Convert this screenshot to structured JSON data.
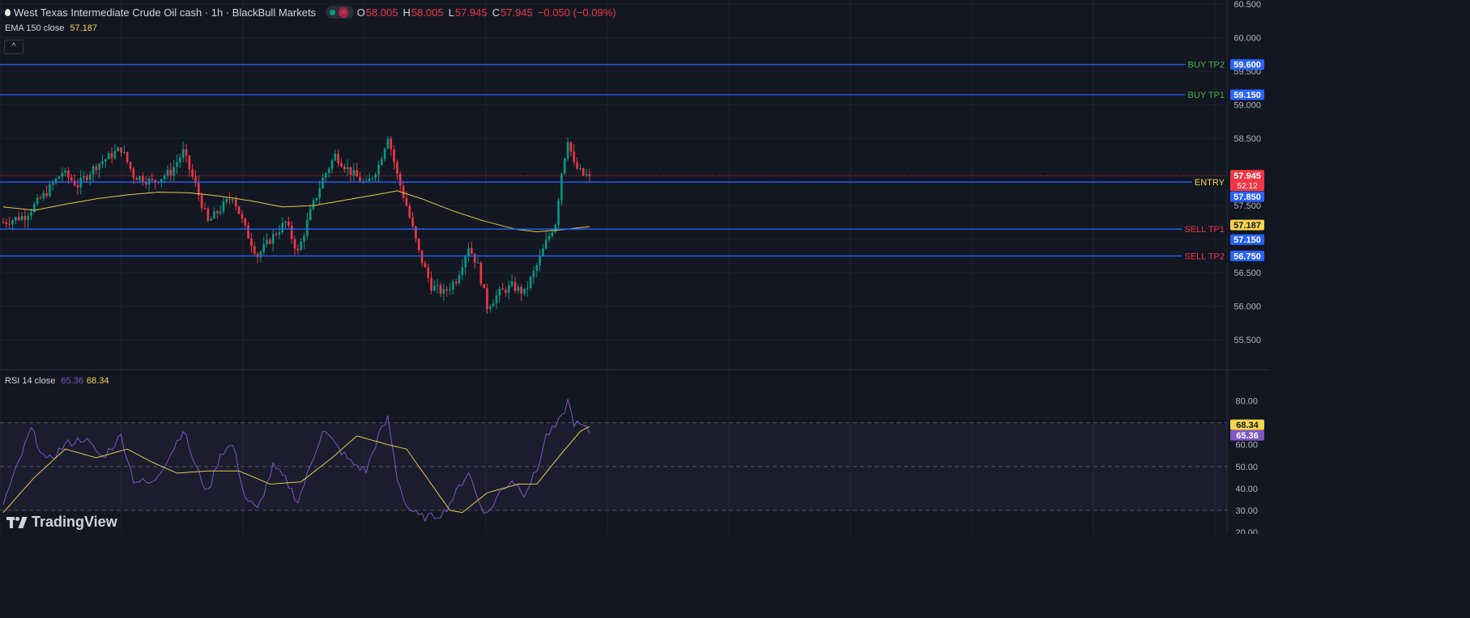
{
  "header": {
    "title": "West Texas Intermediate Crude Oil cash · 1h · BlackBull Markets",
    "ohlc": [
      {
        "key": "O",
        "value": "58.005"
      },
      {
        "key": "H",
        "value": "58.005"
      },
      {
        "key": "L",
        "value": "57.945"
      },
      {
        "key": "C",
        "value": "57.945"
      }
    ],
    "change": "−0.050 (−0.09%)"
  },
  "ema": {
    "label": "EMA 150 close",
    "value": "57.187"
  },
  "rsi": {
    "label": "RSI 14 close",
    "value": "65.36",
    "ma_value": "68.34"
  },
  "collapse_button": "^",
  "brand": "TradingView",
  "colors": {
    "background": "#131722",
    "up": "#089981",
    "down": "#f23645",
    "ema": "#e7c84a",
    "level_line": "#2962ff",
    "rsi": "#7e57c2",
    "rsi_ma": "#e7c84a",
    "buy_text": "#4caf50",
    "sell_text": "#f23645",
    "entry_text": "#f7d54a"
  },
  "chart_data": [
    {
      "type": "candlestick",
      "title": "West Texas Intermediate Crude Oil cash · 1h · BlackBull Markets",
      "ylim": [
        55.25,
        60.5
      ],
      "y_ticks": [
        "60.500",
        "60.000",
        "59.500",
        "59.000",
        "58.500",
        "57.500",
        "56.500",
        "56.000",
        "55.500"
      ],
      "last_price": "57.945",
      "countdown": "52:12",
      "levels": [
        {
          "label": "BUY TP2",
          "price": "59.600",
          "value": 59.6
        },
        {
          "label": "BUY TP1",
          "price": "59.150",
          "value": 59.15
        },
        {
          "label": "ENTRY",
          "price": "57.850",
          "value": 57.85
        },
        {
          "label": "SELL TP1",
          "price": "57.150",
          "value": 57.15
        },
        {
          "label": "SELL TP2",
          "price": "56.750",
          "value": 56.75
        }
      ],
      "ema_label": "57.187",
      "ema_value": 57.187,
      "anchors": [
        [
          0,
          57.25
        ],
        [
          7,
          57.35
        ],
        [
          14,
          57.7
        ],
        [
          19,
          58.0
        ],
        [
          24,
          57.8
        ],
        [
          30,
          58.1
        ],
        [
          38,
          58.35
        ],
        [
          42,
          57.95
        ],
        [
          48,
          57.85
        ],
        [
          54,
          58.0
        ],
        [
          58,
          58.3
        ],
        [
          62,
          57.8
        ],
        [
          66,
          57.25
        ],
        [
          70,
          57.45
        ],
        [
          74,
          57.65
        ],
        [
          78,
          57.15
        ],
        [
          82,
          56.75
        ],
        [
          87,
          57.05
        ],
        [
          91,
          57.25
        ],
        [
          95,
          56.8
        ],
        [
          99,
          57.4
        ],
        [
          103,
          57.9
        ],
        [
          107,
          58.25
        ],
        [
          112,
          58.0
        ],
        [
          117,
          57.8
        ],
        [
          121,
          58.1
        ],
        [
          124,
          58.55
        ],
        [
          127,
          57.95
        ],
        [
          130,
          57.5
        ],
        [
          134,
          56.8
        ],
        [
          138,
          56.3
        ],
        [
          142,
          56.2
        ],
        [
          146,
          56.4
        ],
        [
          150,
          56.9
        ],
        [
          153,
          56.6
        ],
        [
          156,
          56.0
        ],
        [
          160,
          56.2
        ],
        [
          164,
          56.3
        ],
        [
          168,
          56.2
        ],
        [
          172,
          56.6
        ],
        [
          175,
          56.95
        ],
        [
          178,
          57.25
        ],
        [
          180,
          58.0
        ],
        [
          182,
          58.5
        ],
        [
          184,
          58.1
        ],
        [
          187,
          57.95
        ],
        [
          189,
          57.945
        ]
      ],
      "ema_anchors": [
        [
          0,
          57.48
        ],
        [
          10,
          57.43
        ],
        [
          20,
          57.52
        ],
        [
          30,
          57.6
        ],
        [
          40,
          57.66
        ],
        [
          50,
          57.7
        ],
        [
          60,
          57.69
        ],
        [
          70,
          57.64
        ],
        [
          80,
          57.57
        ],
        [
          90,
          57.48
        ],
        [
          100,
          57.5
        ],
        [
          110,
          57.58
        ],
        [
          120,
          57.66
        ],
        [
          127,
          57.72
        ],
        [
          135,
          57.6
        ],
        [
          145,
          57.42
        ],
        [
          155,
          57.27
        ],
        [
          165,
          57.15
        ],
        [
          172,
          57.11
        ],
        [
          180,
          57.14
        ],
        [
          189,
          57.187
        ]
      ]
    },
    {
      "type": "line",
      "title": "RSI 14 close",
      "ylim": [
        20,
        85
      ],
      "y_ticks": [
        "80.00",
        "70.00",
        "60.00",
        "50.00",
        "40.00",
        "30.00",
        "20.00"
      ],
      "bands": [
        30,
        50,
        70
      ],
      "series": [
        {
          "name": "RSI",
          "value": 65.36,
          "label": "65.36",
          "anchors": [
            [
              0,
              33
            ],
            [
              4,
              48
            ],
            [
              9,
              67
            ],
            [
              14,
              52
            ],
            [
              20,
              60
            ],
            [
              26,
              63
            ],
            [
              32,
              54
            ],
            [
              38,
              64
            ],
            [
              42,
              44
            ],
            [
              48,
              42
            ],
            [
              54,
              56
            ],
            [
              58,
              67
            ],
            [
              62,
              50
            ],
            [
              66,
              38
            ],
            [
              70,
              56
            ],
            [
              74,
              60
            ],
            [
              78,
              36
            ],
            [
              82,
              30
            ],
            [
              87,
              50
            ],
            [
              91,
              44
            ],
            [
              95,
              34
            ],
            [
              99,
              50
            ],
            [
              103,
              67
            ],
            [
              107,
              60
            ],
            [
              112,
              52
            ],
            [
              117,
              48
            ],
            [
              121,
              64
            ],
            [
              124,
              72
            ],
            [
              127,
              45
            ],
            [
              130,
              32
            ],
            [
              134,
              27
            ],
            [
              138,
              27
            ],
            [
              142,
              29
            ],
            [
              146,
              38
            ],
            [
              150,
              48
            ],
            [
              153,
              35
            ],
            [
              156,
              28
            ],
            [
              160,
              38
            ],
            [
              164,
              44
            ],
            [
              168,
              38
            ],
            [
              172,
              48
            ],
            [
              175,
              64
            ],
            [
              178,
              68
            ],
            [
              180,
              72
            ],
            [
              182,
              80
            ],
            [
              184,
              70
            ],
            [
              187,
              68
            ],
            [
              189,
              65.36
            ]
          ]
        },
        {
          "name": "RSI-based MA",
          "value": 68.34,
          "label": "68.34",
          "anchors": [
            [
              0,
              29
            ],
            [
              10,
              45
            ],
            [
              20,
              58
            ],
            [
              30,
              54
            ],
            [
              40,
              58
            ],
            [
              48,
              52
            ],
            [
              56,
              47
            ],
            [
              66,
              48
            ],
            [
              76,
              48
            ],
            [
              86,
              42
            ],
            [
              96,
              43
            ],
            [
              106,
              54
            ],
            [
              114,
              64
            ],
            [
              124,
              60
            ],
            [
              130,
              58
            ],
            [
              138,
              42
            ],
            [
              144,
              30
            ],
            [
              148,
              29
            ],
            [
              156,
              38
            ],
            [
              166,
              42
            ],
            [
              172,
              42
            ],
            [
              180,
              56
            ],
            [
              186,
              66
            ],
            [
              189,
              68.34
            ]
          ]
        }
      ]
    }
  ]
}
